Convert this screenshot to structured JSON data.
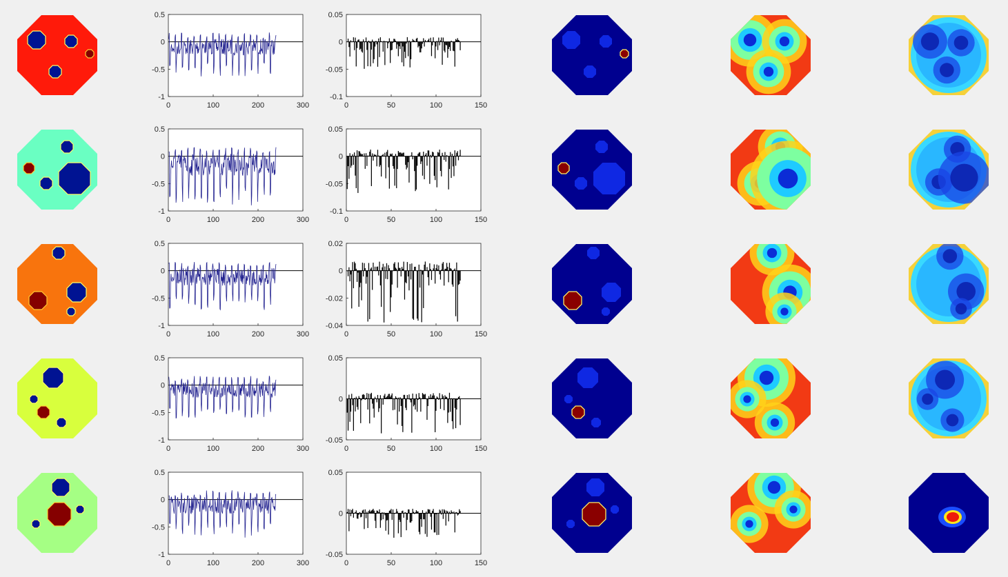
{
  "colors": {
    "background": "#f0f0f0",
    "circle_colors": [
      "#ff1a0a",
      "#6affc2",
      "#f8740d",
      "#d8ff3d",
      "#a5ff84"
    ],
    "inclusion_dark_blue": "#001392",
    "inclusion_dark_red": "#850000",
    "voltage_line": "#232390",
    "diff_bar": "#000000"
  },
  "colormap": "jet",
  "chart_data": [
    {
      "type": "line",
      "row": 1,
      "xlim": [
        0,
        300
      ],
      "ylim": [
        -1,
        0.5
      ],
      "xticks": [
        "0",
        "100",
        "200",
        "300"
      ],
      "yticks": [
        "0.5",
        "0",
        "-0.5",
        "-1"
      ],
      "n": 240,
      "amplitude": 0.65,
      "period": 14,
      "color": "#232390"
    },
    {
      "type": "bar",
      "row": 1,
      "xlim": [
        0,
        150
      ],
      "ylim": [
        -0.1,
        0.05
      ],
      "xticks": [
        "0",
        "50",
        "100",
        "150"
      ],
      "yticks": [
        "0.05",
        "0",
        "-0.05",
        "-0.1"
      ],
      "n": 127,
      "amplitude": 0.05,
      "color": "#000000"
    },
    {
      "type": "line",
      "row": 2,
      "xlim": [
        0,
        300
      ],
      "ylim": [
        -1,
        0.5
      ],
      "xticks": [
        "0",
        "100",
        "200",
        "300"
      ],
      "yticks": [
        "0.5",
        "0",
        "-0.5",
        "-1"
      ],
      "n": 240,
      "amplitude": 0.9,
      "period": 14,
      "color": "#232390"
    },
    {
      "type": "bar",
      "row": 2,
      "xlim": [
        0,
        150
      ],
      "ylim": [
        -0.1,
        0.05
      ],
      "xticks": [
        "0",
        "50",
        "100",
        "150"
      ],
      "yticks": [
        "0.05",
        "0",
        "-0.05",
        "-0.1"
      ],
      "n": 127,
      "amplitude": 0.07,
      "color": "#000000"
    },
    {
      "type": "line",
      "row": 3,
      "xlim": [
        0,
        300
      ],
      "ylim": [
        -1,
        0.5
      ],
      "xticks": [
        "0",
        "100",
        "200",
        "300"
      ],
      "yticks": [
        "0.5",
        "0",
        "-0.5",
        "-1"
      ],
      "n": 240,
      "amplitude": 0.72,
      "period": 14,
      "color": "#232390"
    },
    {
      "type": "bar",
      "row": 3,
      "xlim": [
        0,
        150
      ],
      "ylim": [
        -0.04,
        0.02
      ],
      "xticks": [
        "0",
        "50",
        "100",
        "150"
      ],
      "yticks": [
        "0.02",
        "0",
        "-0.02",
        "-0.04"
      ],
      "n": 127,
      "amplitude": 0.038,
      "color": "#000000"
    },
    {
      "type": "line",
      "row": 4,
      "xlim": [
        0,
        300
      ],
      "ylim": [
        -1,
        0.5
      ],
      "xticks": [
        "0",
        "100",
        "200",
        "300"
      ],
      "yticks": [
        "0.5",
        "0",
        "-0.5",
        "-1"
      ],
      "n": 240,
      "amplitude": 0.62,
      "period": 14,
      "color": "#232390"
    },
    {
      "type": "bar",
      "row": 4,
      "xlim": [
        0,
        150
      ],
      "ylim": [
        -0.05,
        0.05
      ],
      "xticks": [
        "0",
        "50",
        "100",
        "150"
      ],
      "yticks": [
        "0.05",
        "0",
        "-0.05"
      ],
      "n": 127,
      "amplitude": 0.043,
      "color": "#000000"
    },
    {
      "type": "line",
      "row": 5,
      "xlim": [
        0,
        300
      ],
      "ylim": [
        -1,
        0.5
      ],
      "xticks": [
        "0",
        "100",
        "200",
        "300"
      ],
      "yticks": [
        "0.5",
        "0",
        "-0.5",
        "-1"
      ],
      "n": 240,
      "amplitude": 0.7,
      "period": 14,
      "color": "#232390"
    },
    {
      "type": "bar",
      "row": 5,
      "xlim": [
        0,
        150
      ],
      "ylim": [
        -0.05,
        0.05
      ],
      "xticks": [
        "0",
        "50",
        "100",
        "150"
      ],
      "yticks": [
        "0.05",
        "0",
        "-0.05"
      ],
      "n": 127,
      "amplitude": 0.03,
      "color": "#000000"
    }
  ]
}
